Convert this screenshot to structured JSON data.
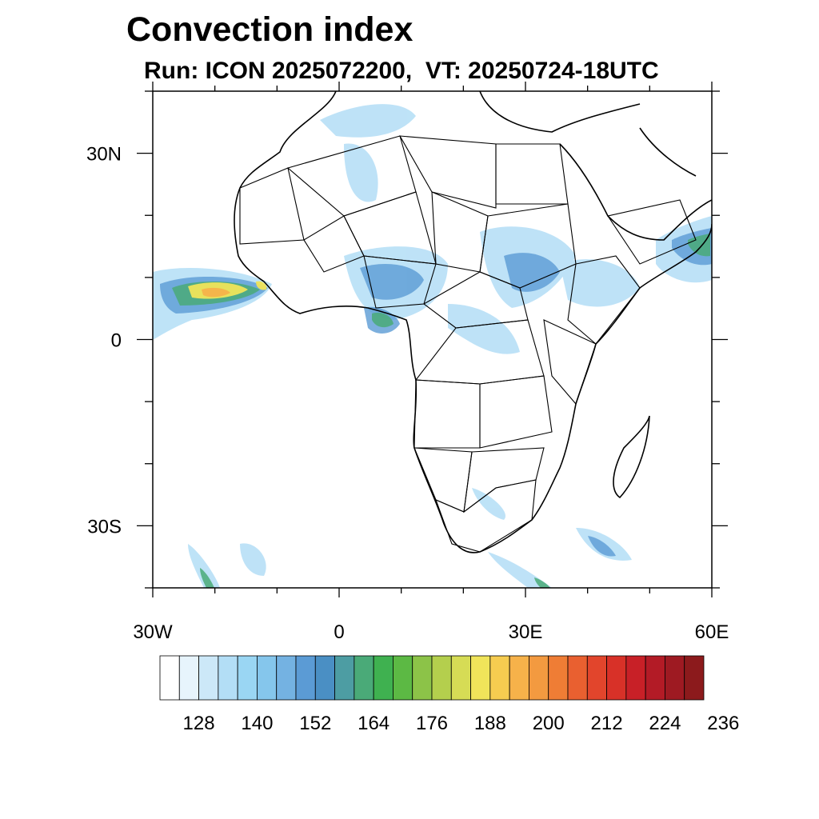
{
  "title": "Convection index",
  "subtitle": "Run: ICON 2025072200,  VT: 20250724-18UTC",
  "map": {
    "lon_range": [
      -30,
      60
    ],
    "lat_range": [
      -40,
      40
    ],
    "x_ticks": [
      {
        "value": -30,
        "label": "30W"
      },
      {
        "value": 0,
        "label": "0"
      },
      {
        "value": 30,
        "label": "30E"
      },
      {
        "value": 60,
        "label": "60E"
      }
    ],
    "y_ticks": [
      {
        "value": 30,
        "label": "30N"
      },
      {
        "value": 0,
        "label": "0"
      },
      {
        "value": -30,
        "label": "30S"
      }
    ],
    "minor_ticks_deg": 10
  },
  "colorbar": {
    "colors": [
      "#ffffff",
      "#e7f4fc",
      "#cce8f8",
      "#b3def6",
      "#9ad6f3",
      "#85c6ec",
      "#74b2e2",
      "#5b9bd5",
      "#4a8fc4",
      "#4d9da3",
      "#4aaa78",
      "#3fb150",
      "#5cb944",
      "#8cc348",
      "#b4cf4d",
      "#d6dc55",
      "#f0e45a",
      "#f6cc50",
      "#f6b24a",
      "#f39a40",
      "#ef7d35",
      "#e96030",
      "#e2452c",
      "#d83128",
      "#c82027",
      "#b31b26",
      "#9e1a22",
      "#8c1a1c"
    ],
    "tick_labels": [
      "128",
      "140",
      "152",
      "164",
      "176",
      "188",
      "200",
      "212",
      "224",
      "236"
    ]
  }
}
